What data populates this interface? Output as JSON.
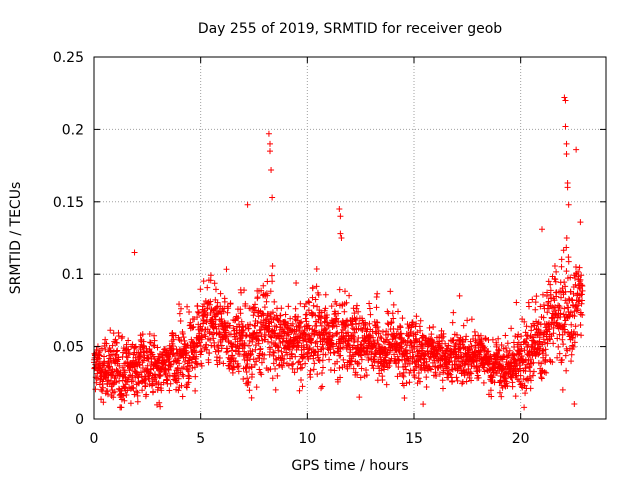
{
  "chart_data": {
    "type": "scatter",
    "title": "Day 255 of 2019, SRMTID for receiver geob",
    "xlabel": "GPS time / hours",
    "ylabel": "SRMTID / TECUs",
    "xlim": [
      0,
      24
    ],
    "ylim": [
      0,
      0.25
    ],
    "x_ticks": [
      0,
      5,
      10,
      15,
      20
    ],
    "x_tick_labels": [
      "0",
      "5",
      "10",
      "15",
      "20"
    ],
    "y_ticks": [
      0,
      0.05,
      0.1,
      0.15,
      0.2,
      0.25
    ],
    "y_tick_labels": [
      "0",
      "0.05",
      "0.1",
      "0.15",
      "0.2",
      "0.25"
    ],
    "grid": true,
    "marker": "+",
    "color": "#ff0000",
    "series": [
      {
        "name": "SRMTID",
        "profile": {
          "hours": [
            0,
            0.5,
            1,
            1.5,
            2,
            2.5,
            3,
            3.5,
            4,
            4.5,
            5,
            5.5,
            6,
            6.5,
            7,
            7.5,
            8,
            8.5,
            9,
            9.5,
            10,
            10.5,
            11,
            11.5,
            12,
            12.5,
            13,
            13.5,
            14,
            14.5,
            15,
            15.5,
            16,
            16.5,
            17,
            17.5,
            18,
            18.5,
            19,
            19.5,
            20,
            20.5,
            21,
            21.5,
            22,
            22.5,
            22.9
          ],
          "median": [
            0.03,
            0.032,
            0.035,
            0.036,
            0.037,
            0.038,
            0.038,
            0.04,
            0.042,
            0.045,
            0.055,
            0.065,
            0.055,
            0.05,
            0.055,
            0.06,
            0.065,
            0.062,
            0.058,
            0.052,
            0.06,
            0.065,
            0.058,
            0.06,
            0.057,
            0.055,
            0.052,
            0.05,
            0.05,
            0.048,
            0.047,
            0.042,
            0.045,
            0.044,
            0.043,
            0.042,
            0.04,
            0.038,
            0.036,
            0.035,
            0.04,
            0.05,
            0.06,
            0.065,
            0.07,
            0.075,
            0.09
          ],
          "spread": [
            0.01,
            0.012,
            0.015,
            0.014,
            0.013,
            0.013,
            0.012,
            0.013,
            0.014,
            0.016,
            0.018,
            0.02,
            0.016,
            0.016,
            0.02,
            0.022,
            0.023,
            0.02,
            0.018,
            0.017,
            0.02,
            0.021,
            0.018,
            0.019,
            0.018,
            0.017,
            0.016,
            0.016,
            0.015,
            0.015,
            0.016,
            0.013,
            0.013,
            0.012,
            0.012,
            0.012,
            0.011,
            0.011,
            0.011,
            0.012,
            0.015,
            0.02,
            0.022,
            0.023,
            0.025,
            0.026,
            0.02
          ]
        },
        "points_per_hour": 130,
        "spikes": [
          {
            "x": 1.9,
            "y": 0.115
          },
          {
            "x": 7.2,
            "y": 0.148
          },
          {
            "x": 8.2,
            "y": 0.197
          },
          {
            "x": 8.25,
            "y": 0.19
          },
          {
            "x": 8.25,
            "y": 0.185
          },
          {
            "x": 8.3,
            "y": 0.172
          },
          {
            "x": 8.35,
            "y": 0.153
          },
          {
            "x": 11.5,
            "y": 0.145
          },
          {
            "x": 11.55,
            "y": 0.14
          },
          {
            "x": 11.55,
            "y": 0.128
          },
          {
            "x": 11.6,
            "y": 0.125
          },
          {
            "x": 21.0,
            "y": 0.131
          },
          {
            "x": 22.05,
            "y": 0.222
          },
          {
            "x": 22.1,
            "y": 0.22
          },
          {
            "x": 22.1,
            "y": 0.202
          },
          {
            "x": 22.15,
            "y": 0.19
          },
          {
            "x": 22.15,
            "y": 0.183
          },
          {
            "x": 22.2,
            "y": 0.163
          },
          {
            "x": 22.2,
            "y": 0.16
          },
          {
            "x": 22.25,
            "y": 0.148
          },
          {
            "x": 22.6,
            "y": 0.186
          },
          {
            "x": 22.8,
            "y": 0.136
          }
        ]
      }
    ]
  }
}
